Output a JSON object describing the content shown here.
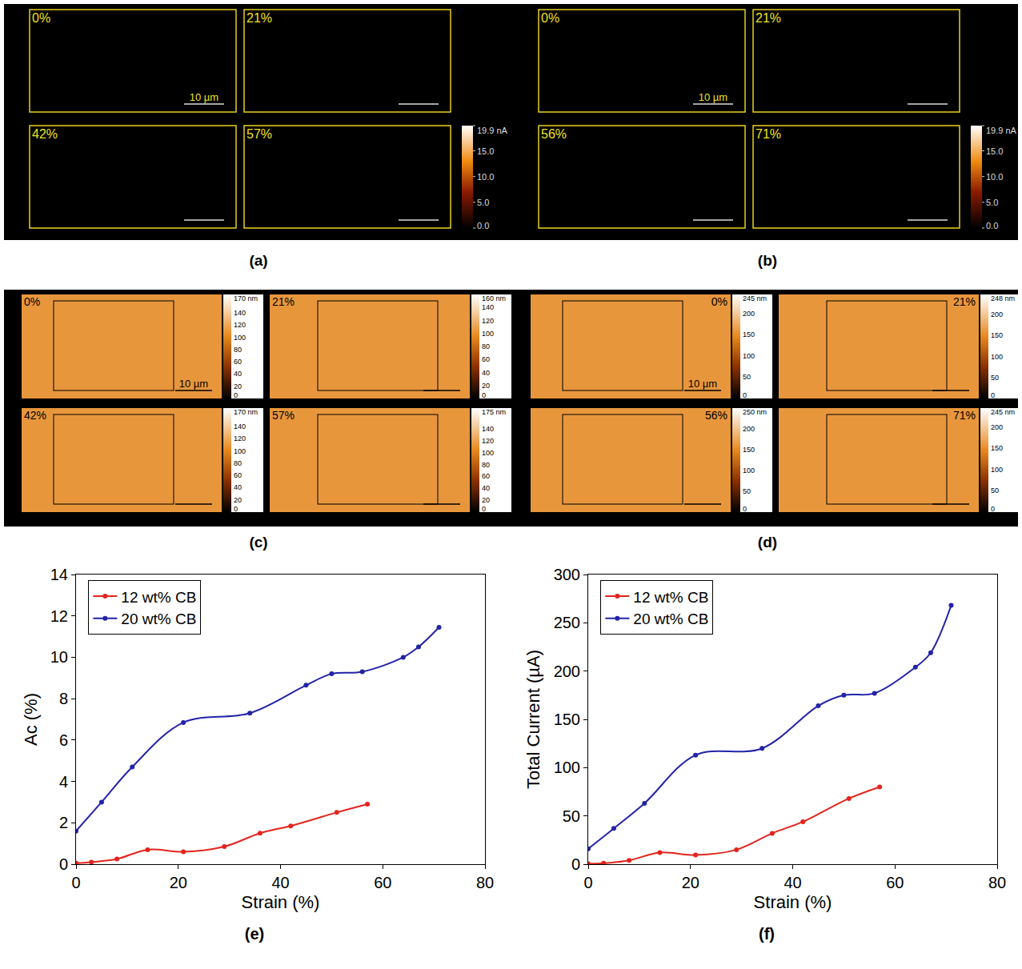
{
  "image_panels": [
    {
      "label": "(a)",
      "scale_bar": "10 µm",
      "colorbar": {
        "clim": [
          0,
          19.9
        ],
        "ticks": [
          {
            "value": 19.9,
            "label": "19.9 nA"
          },
          {
            "value": 15,
            "label": "15.0"
          },
          {
            "value": 10,
            "label": "10.0"
          },
          {
            "value": 5,
            "label": "5.0"
          },
          {
            "value": 0,
            "label": "0.0"
          }
        ]
      },
      "images": [
        {
          "strain": "0%"
        },
        {
          "strain": "21%"
        },
        {
          "strain": "42%"
        },
        {
          "strain": "57%"
        }
      ]
    },
    {
      "label": "(b)",
      "scale_bar": "10 µm",
      "colorbar": {
        "clim": [
          0,
          19.9
        ],
        "ticks": [
          {
            "value": 19.9,
            "label": "19.9 nA"
          },
          {
            "value": 15,
            "label": "15.0"
          },
          {
            "value": 10,
            "label": "10.0"
          },
          {
            "value": 5,
            "label": "5.0"
          },
          {
            "value": 0,
            "label": "0.0"
          }
        ]
      },
      "images": [
        {
          "strain": "0%"
        },
        {
          "strain": "21%"
        },
        {
          "strain": "56%"
        },
        {
          "strain": "71%"
        }
      ]
    },
    {
      "label": "(c)",
      "scale_bar": "10 µm",
      "images": [
        {
          "strain": "0%",
          "colorbar": {
            "clim": [
              0,
              170
            ],
            "ticks": [
              {
                "value": 170,
                "label": "170 nm"
              },
              140,
              120,
              100,
              80,
              60,
              40,
              20,
              0
            ]
          }
        },
        {
          "strain": "21%",
          "colorbar": {
            "clim": [
              0,
              160
            ],
            "ticks": [
              {
                "value": 160,
                "label": "160 nm"
              },
              140,
              120,
              100,
              80,
              60,
              40,
              20,
              0
            ]
          }
        },
        {
          "strain": "42%",
          "colorbar": {
            "clim": [
              0,
              170
            ],
            "ticks": [
              {
                "value": 170,
                "label": "170 nm"
              },
              140,
              120,
              100,
              80,
              60,
              40,
              20,
              0
            ]
          }
        },
        {
          "strain": "57%",
          "colorbar": {
            "clim": [
              0,
              175
            ],
            "ticks": [
              {
                "value": 175,
                "label": "175 nm"
              },
              140,
              120,
              100,
              80,
              60,
              40,
              20,
              0
            ]
          }
        }
      ]
    },
    {
      "label": "(d)",
      "scale_bar": "10 µm",
      "images": [
        {
          "strain": "0%",
          "colorbar": {
            "clim": [
              0,
              245
            ],
            "ticks": [
              {
                "value": 245,
                "label": "245 nm"
              },
              200,
              150,
              100,
              50,
              0
            ]
          }
        },
        {
          "strain": "21%",
          "colorbar": {
            "clim": [
              0,
              248
            ],
            "ticks": [
              {
                "value": 248,
                "label": "248 nm"
              },
              200,
              150,
              100,
              50,
              0
            ]
          }
        },
        {
          "strain": "56%",
          "colorbar": {
            "clim": [
              0,
              250
            ],
            "ticks": [
              {
                "value": 250,
                "label": "250 nm"
              },
              200,
              150,
              100,
              50,
              0
            ]
          }
        },
        {
          "strain": "71%",
          "colorbar": {
            "clim": [
              0,
              245
            ],
            "ticks": [
              {
                "value": 245,
                "label": "245 nm"
              },
              200,
              150,
              100,
              50,
              0
            ]
          }
        }
      ]
    }
  ],
  "chart_data": [
    {
      "type": "line",
      "panel_label": "(e)",
      "x_label": "Strain (%)",
      "y_label": "Ac (%)",
      "xlim": [
        0,
        80
      ],
      "xticks": [
        0,
        20,
        40,
        60,
        80
      ],
      "ylim": [
        0,
        14
      ],
      "yticks": [
        0,
        2,
        4,
        6,
        8,
        10,
        12,
        14
      ],
      "grid": false,
      "legend": "upper left",
      "marker": "circle",
      "line_style": "smooth",
      "series": [
        {
          "name": "12 wt% CB",
          "color": "#e3241d",
          "x": [
            0,
            3,
            8,
            14,
            21,
            29,
            36,
            42,
            51,
            57
          ],
          "values": [
            0.05,
            0.1,
            0.25,
            0.7,
            0.6,
            0.85,
            1.5,
            1.85,
            2.5,
            2.9
          ]
        },
        {
          "name": "20 wt% CB",
          "color": "#2323a8",
          "x": [
            0,
            5,
            11,
            21,
            34,
            45,
            50,
            56,
            64,
            67,
            71
          ],
          "values": [
            1.6,
            3.0,
            4.7,
            6.85,
            7.3,
            8.65,
            9.2,
            9.3,
            10.0,
            10.5,
            11.45
          ]
        }
      ]
    },
    {
      "type": "line",
      "panel_label": "(f)",
      "x_label": "Strain (%)",
      "y_label": "Total Current (µA)",
      "xlim": [
        0,
        80
      ],
      "xticks": [
        0,
        20,
        40,
        60,
        80
      ],
      "ylim": [
        0,
        300
      ],
      "yticks": [
        0,
        50,
        100,
        150,
        200,
        250,
        300
      ],
      "grid": false,
      "legend": "upper left",
      "marker": "circle",
      "line_style": "smooth",
      "series": [
        {
          "name": "12 wt% CB",
          "color": "#e3241d",
          "x": [
            0,
            3,
            8,
            14,
            21,
            29,
            36,
            42,
            51,
            57
          ],
          "values": [
            0.5,
            1,
            4,
            12,
            9.5,
            15,
            32,
            44,
            68,
            80
          ]
        },
        {
          "name": "20 wt% CB",
          "color": "#2323a8",
          "x": [
            0,
            5,
            11,
            21,
            34,
            45,
            50,
            56,
            64,
            67,
            71
          ],
          "values": [
            16,
            37,
            63,
            113,
            120,
            164,
            175,
            177,
            204,
            219,
            268
          ]
        }
      ]
    }
  ]
}
